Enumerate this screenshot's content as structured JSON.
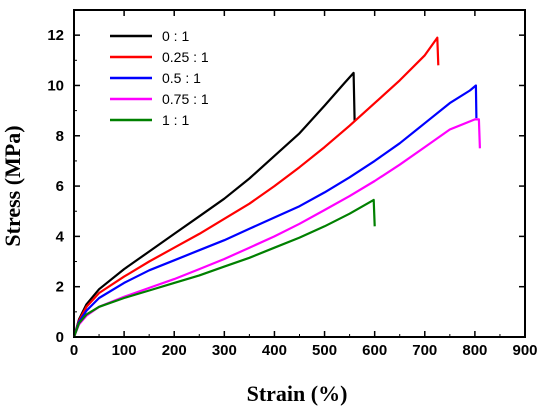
{
  "chart_data": {
    "type": "line",
    "xlabel": "Strain (%)",
    "ylabel": "Stress (MPa)",
    "xlim": [
      0,
      900
    ],
    "ylim": [
      0,
      13
    ],
    "xticks": [
      0,
      100,
      200,
      300,
      400,
      500,
      600,
      700,
      800,
      900
    ],
    "yticks": [
      0,
      2,
      4,
      6,
      8,
      10,
      12
    ],
    "grid": false,
    "legend_position": "top-left",
    "series": [
      {
        "name": "0 : 1",
        "color": "#000000",
        "x": [
          0,
          10,
          25,
          50,
          100,
          150,
          200,
          250,
          300,
          350,
          400,
          450,
          500,
          540,
          558,
          560
        ],
        "y": [
          0,
          0.7,
          1.3,
          1.9,
          2.7,
          3.4,
          4.1,
          4.8,
          5.5,
          6.3,
          7.2,
          8.1,
          9.2,
          10.1,
          10.5,
          8.6
        ]
      },
      {
        "name": "0.25 : 1",
        "color": "#ff0000",
        "x": [
          0,
          10,
          25,
          50,
          100,
          150,
          200,
          250,
          300,
          350,
          400,
          450,
          500,
          550,
          600,
          650,
          700,
          725,
          727
        ],
        "y": [
          0,
          0.65,
          1.2,
          1.75,
          2.4,
          3.0,
          3.55,
          4.1,
          4.7,
          5.3,
          6.0,
          6.75,
          7.55,
          8.4,
          9.3,
          10.2,
          11.2,
          11.9,
          10.8
        ]
      },
      {
        "name": "0.5 : 1",
        "color": "#0000ff",
        "x": [
          0,
          10,
          25,
          50,
          100,
          150,
          200,
          250,
          300,
          350,
          400,
          450,
          500,
          550,
          600,
          650,
          700,
          750,
          790,
          802,
          803
        ],
        "y": [
          0,
          0.6,
          1.05,
          1.55,
          2.15,
          2.65,
          3.05,
          3.45,
          3.85,
          4.3,
          4.75,
          5.2,
          5.75,
          6.35,
          7.0,
          7.7,
          8.5,
          9.3,
          9.8,
          10.0,
          8.7
        ]
      },
      {
        "name": "0.75 : 1",
        "color": "#ff00ff",
        "x": [
          0,
          10,
          25,
          50,
          100,
          150,
          200,
          250,
          300,
          350,
          400,
          450,
          500,
          550,
          600,
          650,
          700,
          750,
          800,
          808,
          810
        ],
        "y": [
          0,
          0.5,
          0.85,
          1.2,
          1.6,
          1.95,
          2.3,
          2.7,
          3.1,
          3.55,
          4.0,
          4.5,
          5.05,
          5.6,
          6.2,
          6.85,
          7.55,
          8.25,
          8.65,
          8.65,
          7.5
        ]
      },
      {
        "name": "1 : 1",
        "color": "#008000",
        "x": [
          0,
          10,
          25,
          50,
          100,
          150,
          200,
          250,
          300,
          350,
          400,
          450,
          500,
          550,
          598,
          600
        ],
        "y": [
          0,
          0.55,
          0.9,
          1.2,
          1.55,
          1.85,
          2.15,
          2.45,
          2.8,
          3.15,
          3.55,
          3.95,
          4.4,
          4.9,
          5.45,
          4.4
        ]
      }
    ]
  }
}
